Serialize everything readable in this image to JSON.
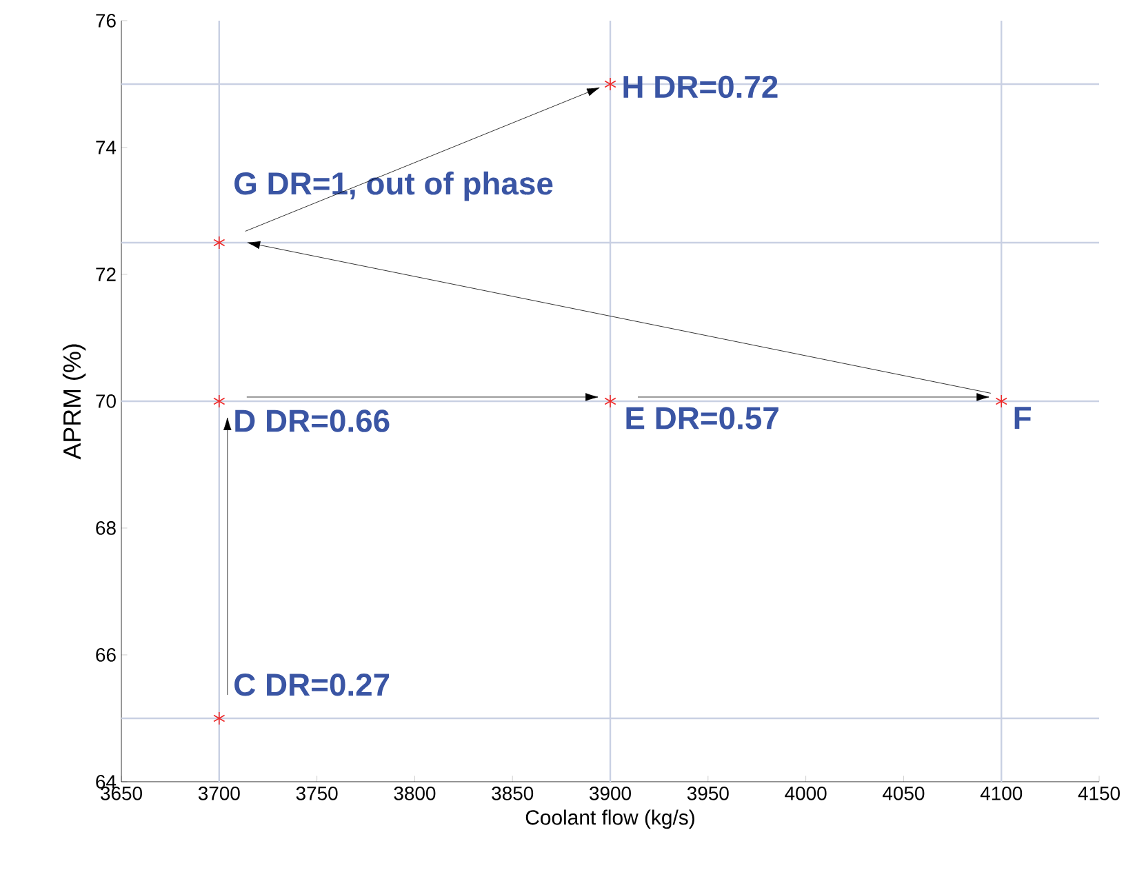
{
  "chart_data": {
    "type": "scatter",
    "xlabel": "Coolant flow (kg/s)",
    "ylabel": "APRM (%)",
    "x": [
      3700,
      3700,
      3900,
      4100,
      3700,
      3900
    ],
    "series": [
      {
        "color": "#ee2a2a",
        "values": [
          65,
          70,
          70,
          70,
          72.5,
          75
        ]
      }
    ],
    "marker": "cross",
    "grid": false,
    "xlim": [
      3650,
      4150
    ],
    "xticks": [
      3650,
      3700,
      3750,
      3800,
      3850,
      3900,
      3950,
      4000,
      4050,
      4100,
      4150
    ],
    "ylim": [
      64,
      76
    ],
    "yticks": [
      64,
      66,
      68,
      70,
      72,
      74,
      76
    ],
    "ref_lines": [
      {
        "axis": "x",
        "value": 3700,
        "color": "#c9d0e3"
      },
      {
        "axis": "x",
        "value": 3900,
        "color": "#c9d0e3"
      },
      {
        "axis": "x",
        "value": 4100,
        "color": "#c9d0e3"
      },
      {
        "axis": "y",
        "value": 65,
        "color": "#c9d0e3"
      },
      {
        "axis": "y",
        "value": 70,
        "color": "#c9d0e3"
      },
      {
        "axis": "y",
        "value": 72.5,
        "color": "#c9d0e3"
      },
      {
        "axis": "y",
        "value": 75,
        "color": "#c9d0e3"
      }
    ],
    "annotations": [
      {
        "text": "C  DR=0.27",
        "x": 3700,
        "y": 65
      },
      {
        "text": "D  DR=0.66",
        "x": 3700,
        "y": 70
      },
      {
        "text": "E  DR=0.57",
        "x": 3900,
        "y": 70
      },
      {
        "text": "F",
        "x": 4100,
        "y": 70
      },
      {
        "text": "G  DR=1, out of phase",
        "x": 3700,
        "y": 72.5
      },
      {
        "text": "H  DR=0.72",
        "x": 3900,
        "y": 75
      }
    ]
  }
}
